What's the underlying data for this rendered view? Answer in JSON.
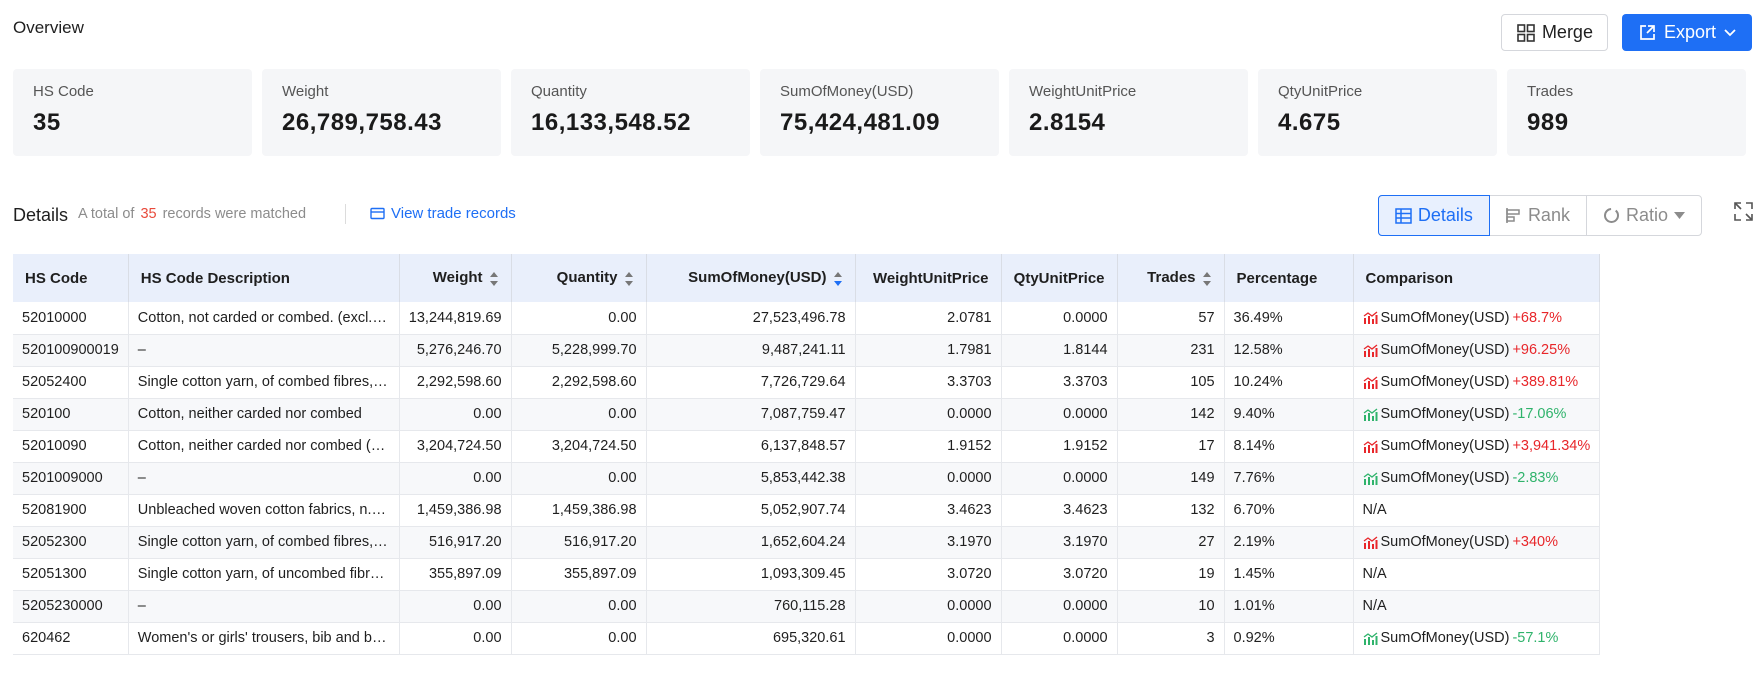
{
  "overview": {
    "title": "Overview"
  },
  "actions": {
    "merge_label": "Merge",
    "export_label": "Export"
  },
  "cards": [
    {
      "label": "HS Code",
      "value": "35"
    },
    {
      "label": "Weight",
      "value": "26,789,758.43"
    },
    {
      "label": "Quantity",
      "value": "16,133,548.52"
    },
    {
      "label": "SumOfMoney(USD)",
      "value": "75,424,481.09"
    },
    {
      "label": "WeightUnitPrice",
      "value": "2.8154"
    },
    {
      "label": "QtyUnitPrice",
      "value": "4.675"
    },
    {
      "label": "Trades",
      "value": "989"
    }
  ],
  "details": {
    "title": "Details",
    "prefix": "A total of",
    "count": "35",
    "suffix": "records were matched",
    "view_link": "View trade records",
    "toggle": {
      "details": "Details",
      "rank": "Rank",
      "ratio": "Ratio"
    }
  },
  "colors": {
    "accent": "#1e6ff5",
    "up": "#e8262a",
    "down": "#2fb36b",
    "header_bg": "#e9effb"
  },
  "table": {
    "headers": [
      "HS Code",
      "HS Code Description",
      "Weight",
      "Quantity",
      "SumOfMoney(USD)",
      "WeightUnitPrice",
      "QtyUnitPrice",
      "Trades",
      "Percentage",
      "Comparison"
    ],
    "rows": [
      {
        "hs": "52010000",
        "desc": "Cotton, not carded or combed. (excl. yarn...",
        "weight": "13,244,819.69",
        "qty": "0.00",
        "sum": "27,523,496.78",
        "wup": "2.0781",
        "qup": "0.0000",
        "trades": "57",
        "pct": "36.49%",
        "cmp_label": "SumOfMoney(USD)",
        "cmp_val": "+68.7%",
        "trend": "up"
      },
      {
        "hs": "520100900019",
        "desc": "–",
        "weight": "5,276,246.70",
        "qty": "5,228,999.70",
        "sum": "9,487,241.11",
        "wup": "1.7981",
        "qup": "1.8144",
        "trades": "231",
        "pct": "12.58%",
        "cmp_label": "SumOfMoney(USD)",
        "cmp_val": "+96.25%",
        "trend": "up"
      },
      {
        "hs": "52052400",
        "desc": "Single cotton yarn, of combed fibres, cont...",
        "weight": "2,292,598.60",
        "qty": "2,292,598.60",
        "sum": "7,726,729.64",
        "wup": "3.3703",
        "qup": "3.3703",
        "trades": "105",
        "pct": "10.24%",
        "cmp_label": "SumOfMoney(USD)",
        "cmp_val": "+389.81%",
        "trend": "up"
      },
      {
        "hs": "520100",
        "desc": "Cotton, neither carded nor combed",
        "weight": "0.00",
        "qty": "0.00",
        "sum": "7,087,759.47",
        "wup": "0.0000",
        "qup": "0.0000",
        "trades": "142",
        "pct": "9.40%",
        "cmp_label": "SumOfMoney(USD)",
        "cmp_val": "-17.06%",
        "trend": "down"
      },
      {
        "hs": "52010090",
        "desc": "Cotton, neither carded nor combed (excl....",
        "weight": "3,204,724.50",
        "qty": "3,204,724.50",
        "sum": "6,137,848.57",
        "wup": "1.9152",
        "qup": "1.9152",
        "trades": "17",
        "pct": "8.14%",
        "cmp_label": "SumOfMoney(USD)",
        "cmp_val": "+3,941.34%",
        "trend": "up"
      },
      {
        "hs": "5201009000",
        "desc": "–",
        "weight": "0.00",
        "qty": "0.00",
        "sum": "5,853,442.38",
        "wup": "0.0000",
        "qup": "0.0000",
        "trades": "149",
        "pct": "7.76%",
        "cmp_label": "SumOfMoney(USD)",
        "cmp_val": "-2.83%",
        "trend": "down"
      },
      {
        "hs": "52081900",
        "desc": "Unbleached woven cotton fabrics, n.e.s., ...",
        "weight": "1,459,386.98",
        "qty": "1,459,386.98",
        "sum": "5,052,907.74",
        "wup": "3.4623",
        "qup": "3.4623",
        "trades": "132",
        "pct": "6.70%",
        "cmp_label": "",
        "cmp_val": "N/A",
        "trend": "none"
      },
      {
        "hs": "52052300",
        "desc": "Single cotton yarn, of combed fibres, cont...",
        "weight": "516,917.20",
        "qty": "516,917.20",
        "sum": "1,652,604.24",
        "wup": "3.1970",
        "qup": "3.1970",
        "trades": "27",
        "pct": "2.19%",
        "cmp_label": "SumOfMoney(USD)",
        "cmp_val": "+340%",
        "trend": "up"
      },
      {
        "hs": "52051300",
        "desc": "Single cotton yarn, of uncombed fibres, c...",
        "weight": "355,897.09",
        "qty": "355,897.09",
        "sum": "1,093,309.45",
        "wup": "3.0720",
        "qup": "3.0720",
        "trades": "19",
        "pct": "1.45%",
        "cmp_label": "",
        "cmp_val": "N/A",
        "trend": "none"
      },
      {
        "hs": "5205230000",
        "desc": "–",
        "weight": "0.00",
        "qty": "0.00",
        "sum": "760,115.28",
        "wup": "0.0000",
        "qup": "0.0000",
        "trades": "10",
        "pct": "1.01%",
        "cmp_label": "",
        "cmp_val": "N/A",
        "trend": "none"
      },
      {
        "hs": "620462",
        "desc": "Women's or girls' trousers, bib and brace...",
        "weight": "0.00",
        "qty": "0.00",
        "sum": "695,320.61",
        "wup": "0.0000",
        "qup": "0.0000",
        "trades": "3",
        "pct": "0.92%",
        "cmp_label": "SumOfMoney(USD)",
        "cmp_val": "-57.1%",
        "trend": "down"
      }
    ]
  }
}
